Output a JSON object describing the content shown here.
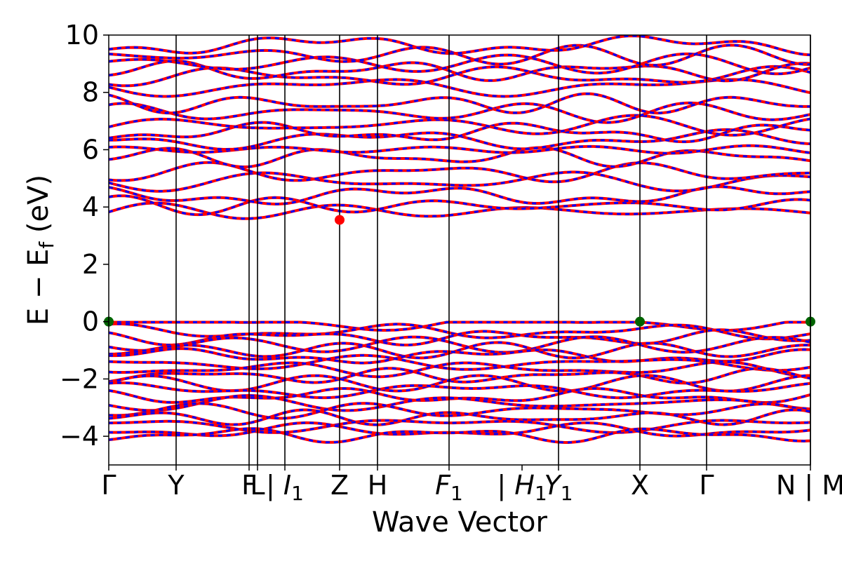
{
  "chart_data": {
    "type": "line",
    "title": "",
    "xlabel": "Wave Vector",
    "ylabel": "E − E",
    "ylabel_sub": "f",
    "ylabel_unit": " (eV)",
    "ylim": [
      -5,
      10
    ],
    "yticks": [
      -4,
      -2,
      0,
      2,
      4,
      6,
      8,
      10
    ],
    "ytick_labels": [
      "−4",
      "−2",
      "0",
      "2",
      "4",
      "6",
      "8",
      "10"
    ],
    "xlim": [
      0,
      10.0
    ],
    "kpoints": [
      {
        "x": 0.0,
        "label": "Γ",
        "sub": ""
      },
      {
        "x": 0.96,
        "label": "Y",
        "sub": ""
      },
      {
        "x": 2.0,
        "label": "F",
        "sub": ""
      },
      {
        "x": 2.12,
        "label": "L",
        "sub": ""
      },
      {
        "x": 2.51,
        "label": "| I",
        "sub": "1"
      },
      {
        "x": 3.29,
        "label": "Z",
        "sub": ""
      },
      {
        "x": 3.83,
        "label": "H",
        "sub": ""
      },
      {
        "x": 4.85,
        "label": "F",
        "sub": "1"
      },
      {
        "x": 5.89,
        "label": "| H",
        "sub": "1"
      },
      {
        "x": 6.41,
        "label": "Y",
        "sub": "1"
      },
      {
        "x": 7.57,
        "label": "X",
        "sub": ""
      },
      {
        "x": 8.52,
        "label": "Γ",
        "sub": ""
      },
      {
        "x": 10.0,
        "label": "N | M",
        "sub": ""
      }
    ],
    "vertical_lines_x": [
      0.96,
      2.0,
      2.12,
      2.51,
      3.29,
      3.83,
      4.85,
      6.41,
      7.57,
      8.52,
      10.0
    ],
    "series": [
      {
        "name": "",
        "color": "#ff0000",
        "style": "solid",
        "width": 4
      },
      {
        "name": "",
        "color": "#0000ff",
        "style": "dashed",
        "width": 3
      }
    ],
    "valence_band_energies": [
      -0.05,
      -0.35,
      -0.55,
      -0.8,
      -1.0,
      -1.2,
      -1.45,
      -1.65,
      -1.9,
      -2.15,
      -2.4,
      -2.6,
      -2.85,
      -3.1,
      -3.35,
      -3.6,
      -3.8,
      -3.95
    ],
    "conduction_band_energies": [
      3.85,
      4.05,
      4.4,
      4.9,
      5.2,
      5.75,
      6.0,
      6.35,
      6.6,
      6.85,
      7.3,
      7.6,
      8.2,
      8.55,
      8.75,
      9.0,
      9.3,
      9.65
    ],
    "markers": [
      {
        "x": 0.0,
        "y": 0.0,
        "color": "#006400",
        "label": "VBM"
      },
      {
        "x": 7.57,
        "y": 0.0,
        "color": "#006400",
        "label": "VBM"
      },
      {
        "x": 10.0,
        "y": 0.0,
        "color": "#006400",
        "label": "VBM"
      },
      {
        "x": 3.29,
        "y": 3.55,
        "color": "#ff0000",
        "label": "CBM"
      }
    ],
    "grid": false,
    "legend": "none"
  }
}
